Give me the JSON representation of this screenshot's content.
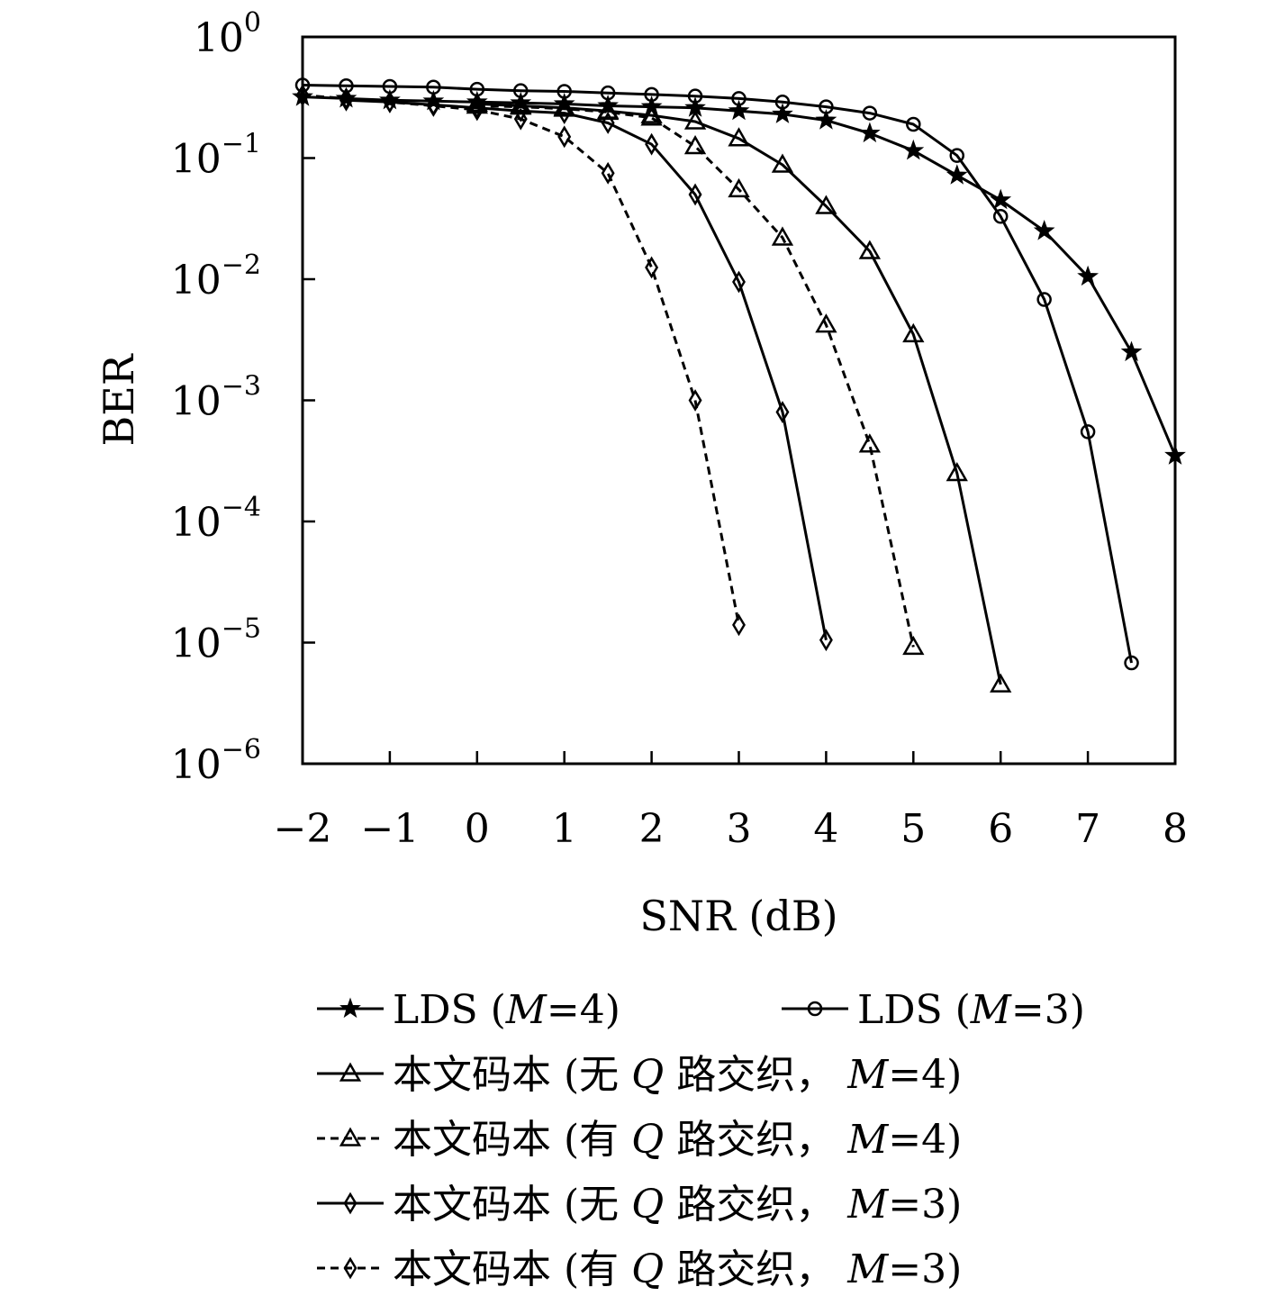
{
  "chart_data": {
    "type": "line",
    "xlabel": "SNR (dB)",
    "ylabel": "BER",
    "xlim": [
      -2,
      8
    ],
    "ylim": [
      1e-06,
      1
    ],
    "yscale": "log",
    "x_ticks": [
      "−2",
      "−1",
      "0",
      "1",
      "2",
      "3",
      "4",
      "5",
      "6",
      "7",
      "8"
    ],
    "y_ticks": [
      {
        "base": "10",
        "exp": "0"
      },
      {
        "base": "10",
        "exp": "−1"
      },
      {
        "base": "10",
        "exp": "−2"
      },
      {
        "base": "10",
        "exp": "−3"
      },
      {
        "base": "10",
        "exp": "−4"
      },
      {
        "base": "10",
        "exp": "−5"
      },
      {
        "base": "10",
        "exp": "−6"
      }
    ],
    "grid": false,
    "legend_position": "bottom",
    "series": [
      {
        "name": "LDS (M=4)",
        "legend": {
          "pre": "LDS (",
          "italic": "M",
          "post": "=4)"
        },
        "marker": "star",
        "dash": "solid",
        "x": [
          -2,
          -1.5,
          -1,
          -0.5,
          0,
          0.5,
          1,
          1.5,
          2,
          2.5,
          3,
          3.5,
          4,
          4.5,
          5,
          5.5,
          6,
          6.5,
          7,
          7.5,
          8
        ],
        "y": [
          0.32,
          0.31,
          0.3,
          0.295,
          0.29,
          0.285,
          0.28,
          0.27,
          0.265,
          0.26,
          0.245,
          0.23,
          0.205,
          0.16,
          0.115,
          0.072,
          0.045,
          0.025,
          0.0105,
          0.0025,
          0.00035
        ]
      },
      {
        "name": "LDS (M=3)",
        "legend": {
          "pre": "LDS (",
          "italic": "M",
          "post": "=3)"
        },
        "marker": "circle",
        "dash": "solid",
        "x": [
          -2,
          -1.5,
          -1,
          -0.5,
          0,
          0.5,
          1,
          1.5,
          2,
          2.5,
          3,
          3.5,
          4,
          4.5,
          5,
          5.5,
          6,
          6.5,
          7,
          7.5
        ],
        "y": [
          0.4,
          0.395,
          0.39,
          0.385,
          0.37,
          0.36,
          0.355,
          0.345,
          0.335,
          0.325,
          0.31,
          0.29,
          0.265,
          0.235,
          0.19,
          0.105,
          0.033,
          0.0068,
          0.00055,
          6.8e-06
        ]
      },
      {
        "name": "本文码本 (无 Q 路交织, M=4)",
        "legend": {
          "pre": "本文码本 (无 ",
          "italic": "Q",
          "mid": " 路交织， ",
          "italic2": "M",
          "post": "=4)"
        },
        "marker": "triangle",
        "dash": "solid",
        "x": [
          0,
          0.5,
          1,
          1.5,
          2,
          2.5,
          3,
          3.5,
          4,
          4.5,
          5,
          5.5,
          6
        ],
        "y": [
          0.28,
          0.27,
          0.26,
          0.245,
          0.225,
          0.2,
          0.145,
          0.088,
          0.04,
          0.017,
          0.0035,
          0.00025,
          4.5e-06
        ]
      },
      {
        "name": "本文码本 (有 Q 路交织, M=4)",
        "legend": {
          "pre": "本文码本 (有 ",
          "italic": "Q",
          "mid": " 路交织， ",
          "italic2": "M",
          "post": "=4)"
        },
        "marker": "triangle",
        "dash": "dashed",
        "x": [
          0,
          0.5,
          1,
          1.5,
          2,
          2.5,
          3,
          3.5,
          4,
          4.5,
          5
        ],
        "y": [
          0.27,
          0.265,
          0.255,
          0.24,
          0.215,
          0.125,
          0.055,
          0.022,
          0.0042,
          0.00043,
          9.2e-06
        ]
      },
      {
        "name": "本文码本 (无 Q 路交织, M=3)",
        "legend": {
          "pre": "本文码本 (无 ",
          "italic": "Q",
          "mid": " 路交织， ",
          "italic2": "M",
          "post": "=3)"
        },
        "marker": "diamond",
        "dash": "solid",
        "x": [
          -1.5,
          -1,
          -0.5,
          0,
          0.5,
          1,
          1.5,
          2,
          2.5,
          3,
          3.5,
          4
        ],
        "y": [
          0.3,
          0.29,
          0.275,
          0.26,
          0.245,
          0.235,
          0.195,
          0.13,
          0.05,
          0.0095,
          0.0008,
          1.05e-05
        ]
      },
      {
        "name": "本文码本 (有 Q 路交织, M=3)",
        "legend": {
          "pre": "本文码本 (有 ",
          "italic": "Q",
          "mid": " 路交织， ",
          "italic2": "M",
          "post": "=3)"
        },
        "marker": "diamond",
        "dash": "dashed",
        "x": [
          -2,
          -1.5,
          -1,
          -0.5,
          0,
          0.5,
          1,
          1.5,
          2,
          2.5,
          3
        ],
        "y": [
          0.33,
          0.31,
          0.29,
          0.27,
          0.25,
          0.21,
          0.15,
          0.075,
          0.0125,
          0.001,
          1.4e-05
        ]
      }
    ]
  }
}
